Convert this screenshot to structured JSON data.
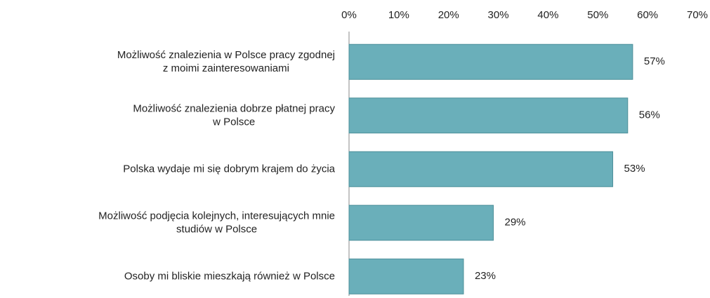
{
  "chart_data": {
    "type": "bar",
    "orientation": "horizontal",
    "categories": [
      "Możliwość znalezienia w Polsce pracy zgodnej\nz moimi zainteresowaniami",
      "Możliwość znalezienia dobrze płatnej pracy\nw Polsce",
      "Polska wydaje mi się dobrym krajem do życia",
      "Możliwość podjęcia kolejnych, interesujących mnie\nstudiów w Polsce",
      "Osoby mi bliskie mieszkają również w Polsce"
    ],
    "values": [
      57,
      56,
      53,
      29,
      23
    ],
    "value_labels": [
      "57%",
      "56%",
      "53%",
      "29%",
      "23%"
    ],
    "color": "#6aafba",
    "xlim": [
      0,
      70
    ],
    "xticks": [
      {
        "value": 0,
        "label": "0%"
      },
      {
        "value": 10,
        "label": "10%"
      },
      {
        "value": 20,
        "label": "20%"
      },
      {
        "value": 30,
        "label": "30%"
      },
      {
        "value": 40,
        "label": "40%"
      },
      {
        "value": 50,
        "label": "50%"
      },
      {
        "value": 60,
        "label": "60%"
      },
      {
        "value": 70,
        "label": "70%"
      }
    ],
    "grid": false
  }
}
